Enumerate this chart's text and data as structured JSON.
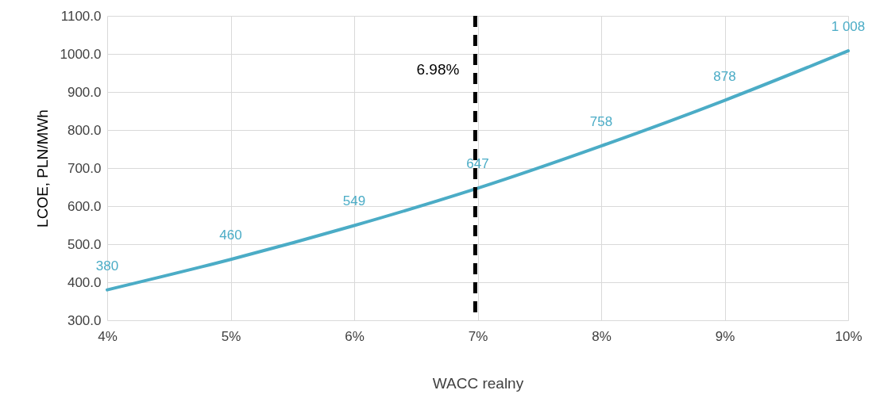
{
  "chart_data": {
    "type": "line",
    "xlabel": "WACC realny",
    "ylabel": "LCOE, PLN/MWh",
    "x": [
      4,
      5,
      6,
      7,
      8,
      9,
      10
    ],
    "series": [
      {
        "color": "#4bacc6",
        "values": [
          380,
          460,
          549,
          647,
          758,
          878,
          1008
        ],
        "value_labels": [
          "380",
          "460",
          "549",
          "647",
          "758",
          "878",
          "1 008"
        ]
      }
    ],
    "xlim": [
      4,
      10
    ],
    "xticks": [
      {
        "value": 4,
        "label": "4%"
      },
      {
        "value": 5,
        "label": "5%"
      },
      {
        "value": 6,
        "label": "6%"
      },
      {
        "value": 7,
        "label": "7%"
      },
      {
        "value": 8,
        "label": "8%"
      },
      {
        "value": 9,
        "label": "9%"
      },
      {
        "value": 10,
        "label": "10%"
      }
    ],
    "ylim": [
      300,
      1100
    ],
    "yticks": [
      {
        "value": 300,
        "label": "300.0"
      },
      {
        "value": 400,
        "label": "400.0"
      },
      {
        "value": 500,
        "label": "500.0"
      },
      {
        "value": 600,
        "label": "600.0"
      },
      {
        "value": 700,
        "label": "700.0"
      },
      {
        "value": 800,
        "label": "800.0"
      },
      {
        "value": 900,
        "label": "900.0"
      },
      {
        "value": 1000,
        "label": "1000.0"
      },
      {
        "value": 1100,
        "label": "1100.0"
      }
    ],
    "ref_lines": [
      {
        "axis": "x",
        "value": 6.98,
        "label": "6.98%",
        "color": "#000000",
        "line_style": "dashed"
      }
    ],
    "grid": true,
    "marker": "none",
    "line_style": "solid"
  }
}
